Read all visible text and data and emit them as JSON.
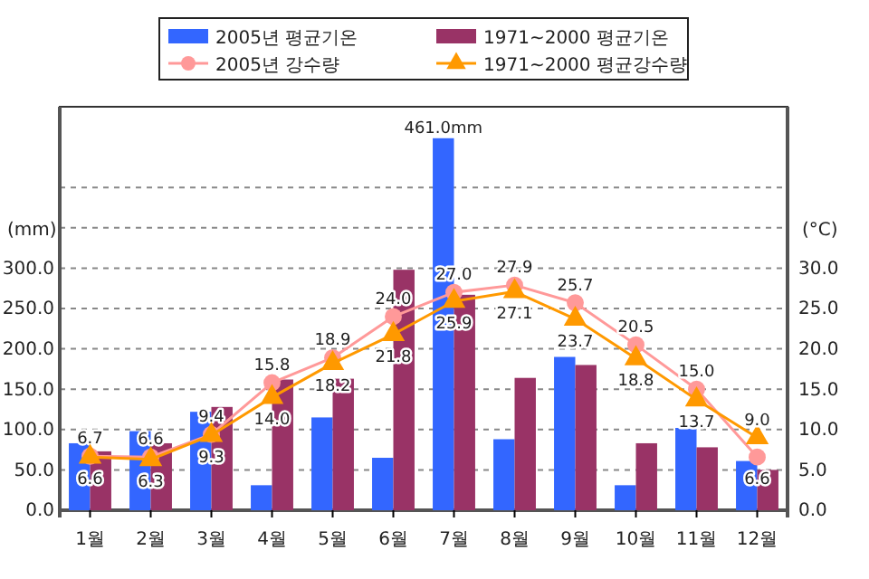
{
  "chart_data": {
    "type": "bar",
    "ylabel": "(mm)",
    "y2label": "(°C)",
    "categories": [
      "1월",
      "2월",
      "3월",
      "4월",
      "5월",
      "6월",
      "7월",
      "8월",
      "9월",
      "10월",
      "11월",
      "12월"
    ],
    "series": [
      {
        "name": "2005년 평균기온",
        "color": "#3366ff",
        "values": [
          83,
          98,
          122,
          31,
          115,
          65,
          461,
          88,
          190,
          31,
          102,
          61
        ],
        "value_labels": [
          null,
          null,
          null,
          null,
          null,
          null,
          "461.0mm",
          null,
          null,
          null,
          null,
          null
        ]
      },
      {
        "name": "1971~2000 평균기온",
        "color": "#993366",
        "values": [
          73,
          83,
          128,
          162,
          163,
          298,
          267,
          164,
          180,
          83,
          78,
          50
        ]
      },
      {
        "name": "2005년 강수량",
        "type": "line",
        "axis": "y2",
        "color": "#ff9999",
        "marker": "circle",
        "values": [
          6.7,
          6.6,
          9.4,
          15.8,
          18.9,
          24.0,
          27.0,
          27.9,
          25.7,
          20.5,
          15.0,
          6.6
        ],
        "value_labels": [
          "6.7",
          "6.6",
          "9.4",
          "15.8",
          "18.9",
          "24.0",
          "27.0",
          "27.9",
          "25.7",
          "20.5",
          "15.0",
          "6.6"
        ]
      },
      {
        "name": "1971~2000 평균강수량",
        "type": "line",
        "axis": "y2",
        "color": "#ff9900",
        "marker": "triangle",
        "values": [
          6.6,
          6.3,
          9.3,
          14.0,
          18.2,
          21.8,
          25.9,
          27.1,
          23.7,
          18.8,
          13.7,
          9.0
        ],
        "value_labels": [
          "6.6",
          "6.3",
          "9.3",
          "14.0",
          "18.2",
          "21.8",
          "25.9",
          "27.1",
          "23.7",
          "18.8",
          "13.7",
          "9.0"
        ]
      }
    ],
    "ylim": [
      0,
      500
    ],
    "yticks": [
      {
        "value": 0,
        "label": "0.0"
      },
      {
        "value": 50,
        "label": "50.0"
      },
      {
        "value": 100,
        "label": "100.0"
      },
      {
        "value": 150,
        "label": "150.0"
      },
      {
        "value": 200,
        "label": "200.0"
      },
      {
        "value": 250,
        "label": "250.0"
      },
      {
        "value": 300,
        "label": "300.0"
      },
      {
        "value": 350,
        "label": null
      },
      {
        "value": 400,
        "label": null
      }
    ],
    "y2lim": [
      0,
      50
    ],
    "y2ticks": [
      {
        "value": 0,
        "label": "0.0"
      },
      {
        "value": 5,
        "label": "5.0"
      },
      {
        "value": 10,
        "label": "10.0"
      },
      {
        "value": 15,
        "label": "15.0"
      },
      {
        "value": 20,
        "label": "20.0"
      },
      {
        "value": 25,
        "label": "25.0"
      },
      {
        "value": 30,
        "label": "30.0"
      }
    ],
    "grid": "y",
    "legend": "top"
  }
}
